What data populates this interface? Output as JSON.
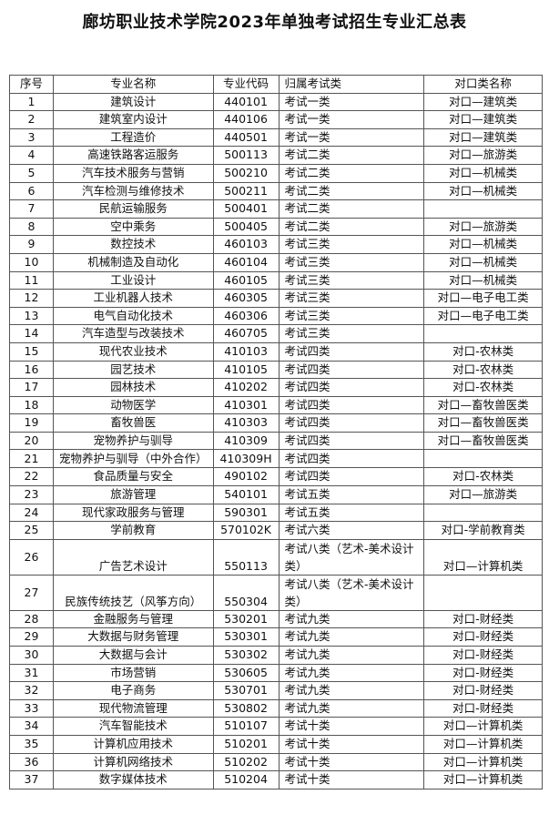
{
  "title": "廊坊职业技术学院2023年单独考试招生专业汇总表",
  "headers": [
    "序号",
    "专业名称",
    "专业代码",
    "归属考试类",
    "对口类名称"
  ],
  "rows": [
    [
      "1",
      "建筑设计",
      "440101",
      "考试一类",
      "对口—建筑类"
    ],
    [
      "2",
      "建筑室内设计",
      "440106",
      "考试一类",
      "对口—建筑类"
    ],
    [
      "3",
      "工程造价",
      "440501",
      "考试一类",
      "对口—建筑类"
    ],
    [
      "4",
      "高速铁路客运服务",
      "500113",
      "考试二类",
      "对口—旅游类"
    ],
    [
      "5",
      "汽车技术服务与营销",
      "500210",
      "考试二类",
      "对口—机械类"
    ],
    [
      "6",
      "汽车检测与维修技术",
      "500211",
      "考试二类",
      "对口—机械类"
    ],
    [
      "7",
      "民航运输服务",
      "500401",
      "考试二类",
      ""
    ],
    [
      "8",
      "空中乘务",
      "500405",
      "考试二类",
      "对口—旅游类"
    ],
    [
      "9",
      "数控技术",
      "460103",
      "考试三类",
      "对口—机械类"
    ],
    [
      "10",
      "机械制造及自动化",
      "460104",
      "考试三类",
      "对口—机械类"
    ],
    [
      "11",
      "工业设计",
      "460105",
      "考试三类",
      "对口—机械类"
    ],
    [
      "12",
      "工业机器人技术",
      "460305",
      "考试三类",
      "对口—电子电工类"
    ],
    [
      "13",
      "电气自动化技术",
      "460306",
      "考试三类",
      "对口—电子电工类"
    ],
    [
      "14",
      "汽车造型与改装技术",
      "460705",
      "考试三类",
      ""
    ],
    [
      "15",
      "现代农业技术",
      "410103",
      "考试四类",
      "对口-农林类"
    ],
    [
      "16",
      "园艺技术",
      "410105",
      "考试四类",
      "对口-农林类"
    ],
    [
      "17",
      "园林技术",
      "410202",
      "考试四类",
      "对口-农林类"
    ],
    [
      "18",
      "动物医学",
      "410301",
      "考试四类",
      "对口—畜牧兽医类"
    ],
    [
      "19",
      "畜牧兽医",
      "410303",
      "考试四类",
      "对口—畜牧兽医类"
    ],
    [
      "20",
      "宠物养护与驯导",
      "410309",
      "考试四类",
      "对口—畜牧兽医类"
    ],
    [
      "21",
      "宠物养护与驯导（中外合作）",
      "410309H",
      "考试四类",
      ""
    ],
    [
      "22",
      "食品质量与安全",
      "490102",
      "考试四类",
      "对口-农林类"
    ],
    [
      "23",
      "旅游管理",
      "540101",
      "考试五类",
      "对口—旅游类"
    ],
    [
      "24",
      "现代家政服务与管理",
      "590301",
      "考试五类",
      ""
    ],
    [
      "25",
      "学前教育",
      "570102K",
      "考试六类",
      "对口-学前教育类"
    ],
    [
      "26",
      "广告艺术设计",
      "550113",
      "考试八类（艺术-美术设计类）",
      "对口—计算机类"
    ],
    [
      "27",
      "民族传统技艺（风筝方向）",
      "550304",
      "考试八类（艺术-美术设计类）",
      ""
    ],
    [
      "28",
      "金融服务与管理",
      "530201",
      "考试九类",
      "对口-财经类"
    ],
    [
      "29",
      "大数据与财务管理",
      "530301",
      "考试九类",
      "对口-财经类"
    ],
    [
      "30",
      "大数据与会计",
      "530302",
      "考试九类",
      "对口-财经类"
    ],
    [
      "31",
      "市场营销",
      "530605",
      "考试九类",
      "对口-财经类"
    ],
    [
      "32",
      "电子商务",
      "530701",
      "考试九类",
      "对口-财经类"
    ],
    [
      "33",
      "现代物流管理",
      "530802",
      "考试九类",
      "对口-财经类"
    ],
    [
      "34",
      "汽车智能技术",
      "510107",
      "考试十类",
      "对口—计算机类"
    ],
    [
      "35",
      "计算机应用技术",
      "510201",
      "考试十类",
      "对口—计算机类"
    ],
    [
      "36",
      "计算机网络技术",
      "510202",
      "考试十类",
      "对口—计算机类"
    ],
    [
      "37",
      "数字媒体技术",
      "510204",
      "考试十类",
      "对口—计算机类"
    ]
  ]
}
